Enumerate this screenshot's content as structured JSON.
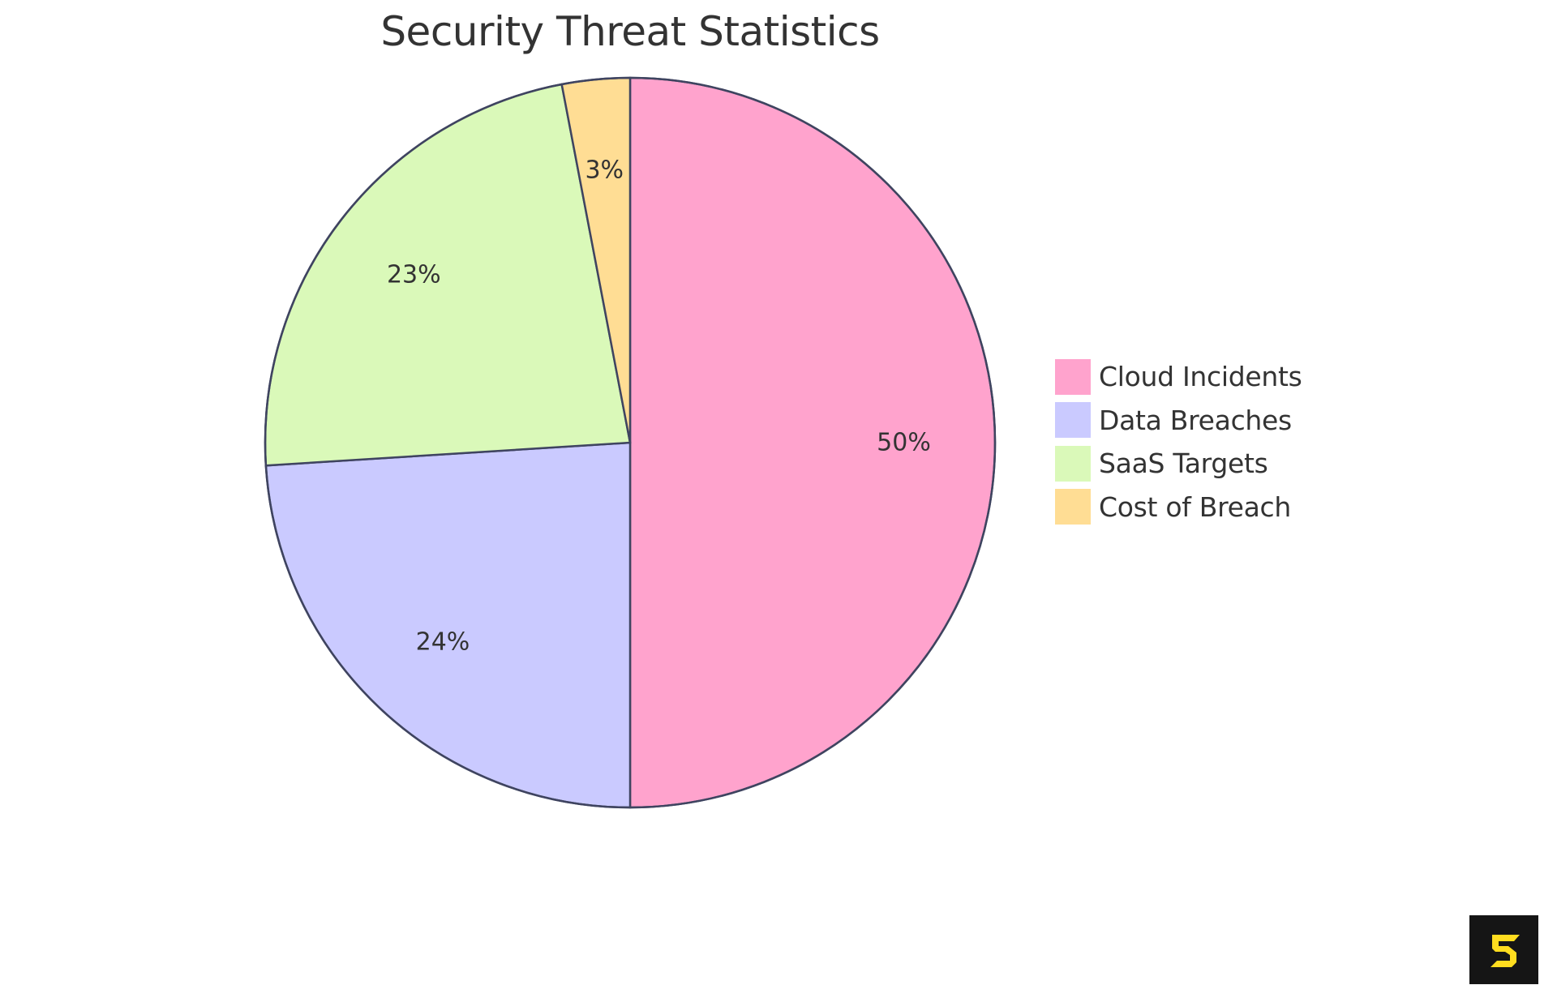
{
  "chart_data": {
    "type": "pie",
    "title": "Security Threat Statistics",
    "categories": [
      "Cloud Incidents",
      "Data Breaches",
      "SaaS Targets",
      "Cost of Breach"
    ],
    "values": [
      50,
      24,
      23,
      3
    ],
    "labels": [
      "50%",
      "24%",
      "23%",
      "3%"
    ],
    "colors": [
      "#FFA3CD",
      "#CACAFF",
      "#DAF9B9",
      "#FFDD94"
    ],
    "stroke_color": "#3F4460",
    "start_angle": "12 o'clock, clockwise",
    "legend_position": "right"
  },
  "title": "Security Threat Statistics",
  "legend": [
    {
      "label": "Cloud Incidents",
      "color": "#FFA3CD"
    },
    {
      "label": "Data Breaches",
      "color": "#CACAFF"
    },
    {
      "label": "SaaS Targets",
      "color": "#DAF9B9"
    },
    {
      "label": "Cost of Breach",
      "color": "#FFDD94"
    }
  ],
  "logo": {
    "icon": "s-logo-icon",
    "bg": "#151515",
    "fg": "#FFDD1F"
  }
}
